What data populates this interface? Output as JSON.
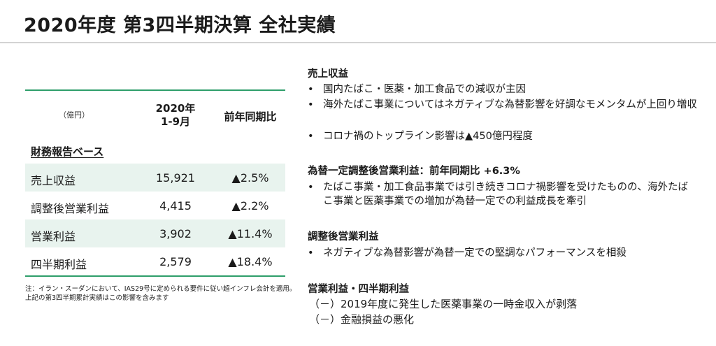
{
  "title": "2020年度 第3四半期決算 全社実績",
  "table": {
    "unit": "（億円）",
    "period_header_line1": "2020年",
    "period_header_line2": "1-9月",
    "yoy_header": "前年同期比",
    "section_label": "財務報告ベース",
    "rows": [
      {
        "name": "売上収益",
        "value": "15,921",
        "yoy": "▲2.5%"
      },
      {
        "name": "調整後営業利益",
        "value": "4,415",
        "yoy": "▲2.2%"
      },
      {
        "name": "営業利益",
        "value": "3,902",
        "yoy": "▲11.4%"
      },
      {
        "name": "四半期利益",
        "value": "2,579",
        "yoy": "▲18.4%"
      }
    ]
  },
  "note": {
    "line1": "注：イラン・スーダンにおいて、IAS29号に定められる要件に従い超インフレ会計を適用。",
    "line2": "上記の第3四半期累計実績はこの影響を含みます"
  },
  "sections": [
    {
      "heading": "売上収益",
      "bullets": [
        "国内たばこ・医薬・加工食品での減収が主因",
        "海外たばこ事業についてはネガティブな為替影響を好調なモメンタムが上回り増収",
        "コロナ禍のトップライン影響は▲450億円程度"
      ]
    },
    {
      "heading": "為替一定調整後営業利益：前年同期比 +6.3%",
      "bullets": [
        "たばこ事業・加工食品事業では引き続きコロナ禍影響を受けたものの、海外たばこ事業と医薬事業での増加が為替一定での利益成長を牽引"
      ]
    },
    {
      "heading": "調整後営業利益",
      "bullets": [
        "ネガティブな為替影響が為替一定での堅調なパフォーマンスを相殺"
      ]
    },
    {
      "heading": "営業利益・四半期利益",
      "items": [
        "（－）2019年度に発生した医薬事業の一時金収入が剥落",
        "（－）金融損益の悪化"
      ]
    }
  ],
  "bullet_glyph": "•"
}
